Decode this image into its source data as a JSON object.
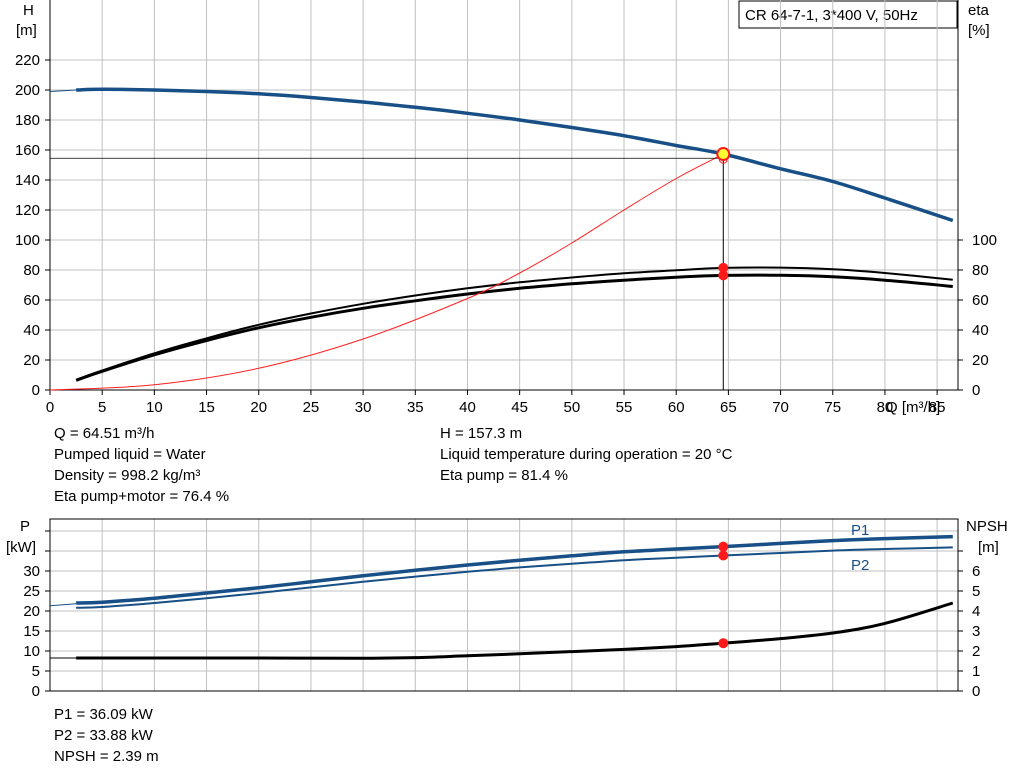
{
  "title_box": "CR 64-7-1, 3*400 V, 50Hz",
  "colors": {
    "head_curve": "#174f86",
    "efficiency_curve": "#000000",
    "system_curve": "#ff2020",
    "power_curve": "#174f86",
    "npsh_curve": "#000000",
    "marker": "#ff1a1a",
    "duty_marker_fill": "#ffff33",
    "grid": "#c0c0c0"
  },
  "chart_data": [
    {
      "type": "line",
      "name": "head-efficiency",
      "xlabel": "Q [m³/h]",
      "ylabel_left": [
        "H",
        "[m]"
      ],
      "ylabel_right": [
        "eta",
        "[%]"
      ],
      "xlim": [
        0,
        87
      ],
      "xticks": [
        0,
        5,
        10,
        15,
        20,
        25,
        30,
        35,
        40,
        45,
        50,
        55,
        60,
        65,
        70,
        75,
        80,
        85
      ],
      "ylim": [
        0,
        220
      ],
      "yticks": [
        0,
        20,
        40,
        60,
        80,
        100,
        120,
        140,
        160,
        180,
        200,
        220
      ],
      "y2lim": [
        0,
        100
      ],
      "y2ticks": [
        0,
        20,
        40,
        60,
        80,
        100
      ],
      "grid": true,
      "series": [
        {
          "id": "head",
          "axis": "left",
          "x": [
            2.5,
            5,
            10,
            15,
            20,
            25,
            30,
            35,
            40,
            45,
            50,
            55,
            60,
            64.51,
            70,
            75,
            80,
            86.5
          ],
          "y": [
            200,
            200.5,
            200,
            199,
            197.5,
            195,
            192,
            188.5,
            184.5,
            180,
            175,
            169.5,
            163,
            157.3,
            147.5,
            139,
            128,
            113
          ]
        },
        {
          "id": "eta-pump",
          "axis": "right",
          "x": [
            2.5,
            5,
            10,
            15,
            20,
            25,
            30,
            35,
            40,
            45,
            50,
            55,
            60,
            64.51,
            70,
            75,
            80,
            86.5
          ],
          "y": [
            6.8,
            13,
            24.5,
            34.5,
            43.5,
            51,
            57.5,
            63,
            67.8,
            71.8,
            75,
            77.8,
            79.8,
            81.4,
            81.6,
            80.5,
            78,
            73.5
          ]
        },
        {
          "id": "eta-pump-motor",
          "axis": "right",
          "x": [
            2.5,
            5,
            10,
            15,
            20,
            25,
            30,
            35,
            40,
            45,
            50,
            55,
            60,
            64.51,
            70,
            75,
            80,
            86.5
          ],
          "y": [
            6.5,
            12.5,
            23.5,
            33,
            41.5,
            48.5,
            54.5,
            59.5,
            64,
            67.8,
            70.8,
            73.2,
            75.2,
            76.4,
            76.5,
            75.5,
            73.2,
            69
          ]
        },
        {
          "id": "system",
          "axis": "left",
          "x": [
            0,
            10,
            20,
            30,
            40,
            45,
            50,
            55,
            60,
            64.51
          ],
          "y": [
            0,
            3.5,
            14.5,
            34,
            61,
            78,
            98,
            120,
            141,
            157.3
          ]
        }
      ],
      "duty_point": {
        "Q": 64.51,
        "H": 157.3,
        "eta_pump": 81.4,
        "eta_pump_motor": 76.4,
        "ref_H": 154.5,
        "ref_x": 64.51
      }
    },
    {
      "type": "line",
      "name": "power-npsh",
      "ylabel_left": [
        "P",
        "[kW]"
      ],
      "ylabel_right": [
        "NPSH",
        "[m]"
      ],
      "xlim": [
        0,
        87
      ],
      "ylim": [
        0,
        43
      ],
      "yticks": [
        0,
        5,
        10,
        15,
        20,
        25,
        30
      ],
      "y2lim": [
        0,
        8.6
      ],
      "y2ticks": [
        0,
        1,
        2,
        3,
        4,
        5,
        6,
        7
      ],
      "y2labels": [
        0,
        1,
        2,
        3,
        4,
        5,
        6
      ],
      "grid": true,
      "series": [
        {
          "id": "P1",
          "label": "P1",
          "axis": "left",
          "x": [
            2.5,
            5,
            10,
            15,
            20,
            25,
            30,
            35,
            40,
            45,
            50,
            55,
            60,
            64.51,
            70,
            75,
            80,
            86.5
          ],
          "y": [
            22,
            22.2,
            23.2,
            24.5,
            25.8,
            27.3,
            28.8,
            30.2,
            31.5,
            32.7,
            33.8,
            34.8,
            35.5,
            36.09,
            36.9,
            37.6,
            38.1,
            38.6
          ]
        },
        {
          "id": "P2",
          "label": "P2",
          "axis": "left",
          "x": [
            2.5,
            5,
            10,
            15,
            20,
            25,
            30,
            35,
            40,
            45,
            50,
            55,
            60,
            64.51,
            70,
            75,
            80,
            86.5
          ],
          "y": [
            20.8,
            21,
            22,
            23.2,
            24.5,
            25.9,
            27.3,
            28.6,
            29.8,
            30.9,
            31.8,
            32.7,
            33.3,
            33.88,
            34.5,
            35.1,
            35.5,
            35.9
          ]
        },
        {
          "id": "NPSH",
          "axis": "right",
          "x": [
            2.5,
            10,
            20,
            30,
            35,
            40,
            45,
            50,
            55,
            60,
            64.51,
            70,
            75,
            80,
            86.5
          ],
          "y": [
            1.65,
            1.65,
            1.65,
            1.64,
            1.67,
            1.76,
            1.86,
            1.97,
            2.08,
            2.22,
            2.39,
            2.62,
            2.9,
            3.38,
            4.4
          ]
        }
      ],
      "duty_point": {
        "Q": 64.51,
        "P1": 36.09,
        "P2": 33.88,
        "NPSH": 2.39
      },
      "ref_P": 21.3,
      "ref_NPSH": 1.65
    }
  ],
  "info": {
    "left": [
      "Q = 64.51 m³/h",
      "Pumped liquid = Water",
      "Density = 998.2 kg/m³",
      "Eta pump+motor = 76.4 %"
    ],
    "right": [
      "H = 157.3 m",
      "Liquid temperature during operation = 20 °C",
      "Eta pump = 81.4 %"
    ],
    "bottom": [
      "P1 = 36.09 kW",
      "P2 = 33.88 kW",
      "NPSH = 2.39 m"
    ]
  }
}
